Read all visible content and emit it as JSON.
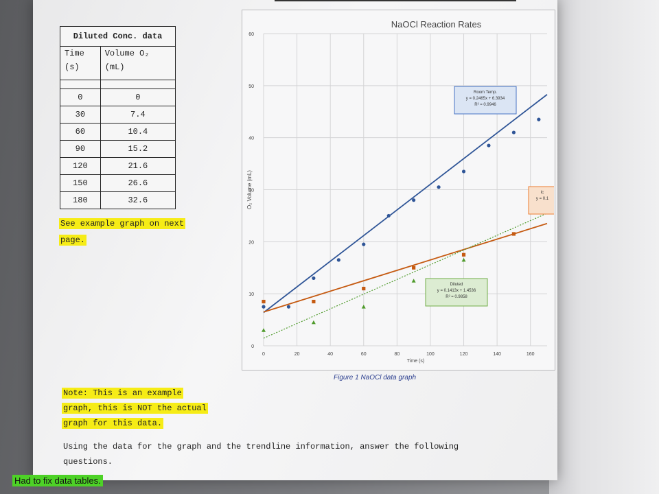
{
  "table": {
    "caption": "Diluted Conc. data",
    "col_time": [
      "Time",
      "(s)"
    ],
    "col_volume": [
      "Volume O₂",
      "(mL)"
    ],
    "rows": [
      {
        "time": "0",
        "volume": "0"
      },
      {
        "time": "30",
        "volume": "7.4"
      },
      {
        "time": "60",
        "volume": "10.4"
      },
      {
        "time": "90",
        "volume": "15.2"
      },
      {
        "time": "120",
        "volume": "21.6"
      },
      {
        "time": "150",
        "volume": "26.6"
      },
      {
        "time": "180",
        "volume": "32.6"
      }
    ]
  },
  "notes": {
    "example_line1": "See example graph on next",
    "example_line2": "page.",
    "note_line1": "Note: This is an example",
    "note_line2": "graph, this is NOT the actual",
    "note_line3": "graph for this data.",
    "instructions_line1": "Using the data for the graph and the trendline information, answer the following",
    "instructions_line2": "questions.",
    "green_note": "Had to fix data tables."
  },
  "figure_caption": "Figure 1 NaOCl data graph",
  "chart_data": {
    "type": "scatter",
    "title": "NaOCl Reaction Rates",
    "xlabel": "Time (s)",
    "ylabel": "O₂ Volume (mL)",
    "xlim": [
      0,
      170
    ],
    "ylim": [
      0,
      60
    ],
    "x_ticks": [
      "0",
      "20",
      "40",
      "60",
      "80",
      "100",
      "120",
      "140",
      "160"
    ],
    "y_ticks": [
      "0",
      "10",
      "20",
      "30",
      "40",
      "50",
      "60"
    ],
    "grid": true,
    "series": [
      {
        "name": "Room Temp.",
        "color": "#2f5597",
        "marker": "circle",
        "points": [
          [
            0,
            7.5
          ],
          [
            15,
            7.5
          ],
          [
            30,
            13
          ],
          [
            45,
            16.5
          ],
          [
            60,
            19.5
          ],
          [
            75,
            25
          ],
          [
            90,
            28
          ],
          [
            105,
            30.5
          ],
          [
            120,
            33.5
          ],
          [
            135,
            38.5
          ],
          [
            150,
            41
          ],
          [
            165,
            43.5
          ]
        ],
        "trendline": {
          "slope": 0.2465,
          "intercept": 6.3934
        },
        "label_lines": [
          "Room Temp.",
          "y = 0.2465x + 6.3934",
          "R² = 0.9946"
        ],
        "label_border": "#4472c4",
        "label_fill": "#dbe5f4"
      },
      {
        "name": "",
        "color": "#c55a11",
        "marker": "square",
        "points": [
          [
            0,
            8.5
          ],
          [
            30,
            8.5
          ],
          [
            60,
            11
          ],
          [
            90,
            15
          ],
          [
            120,
            17.5
          ],
          [
            150,
            21.5
          ]
        ],
        "trendline": {
          "slope": 0.1,
          "intercept": 6.5
        },
        "label_lines": [
          "lc",
          "y = 0.1"
        ],
        "label_border": "#ed7d31",
        "label_fill": "#f8e0cc"
      },
      {
        "name": "Diluted",
        "color": "#4e9a2a",
        "marker": "triangle",
        "points": [
          [
            0,
            3
          ],
          [
            30,
            4.5
          ],
          [
            60,
            7.5
          ],
          [
            90,
            12.5
          ],
          [
            120,
            16.5
          ]
        ],
        "trendline": {
          "slope": 0.1413,
          "intercept": 1.4536
        },
        "label_lines": [
          "Diluted",
          "y = 0.1413x + 1.4536",
          "R² = 0.9858"
        ],
        "label_border": "#70ad47",
        "label_fill": "#dcecd2"
      }
    ]
  }
}
